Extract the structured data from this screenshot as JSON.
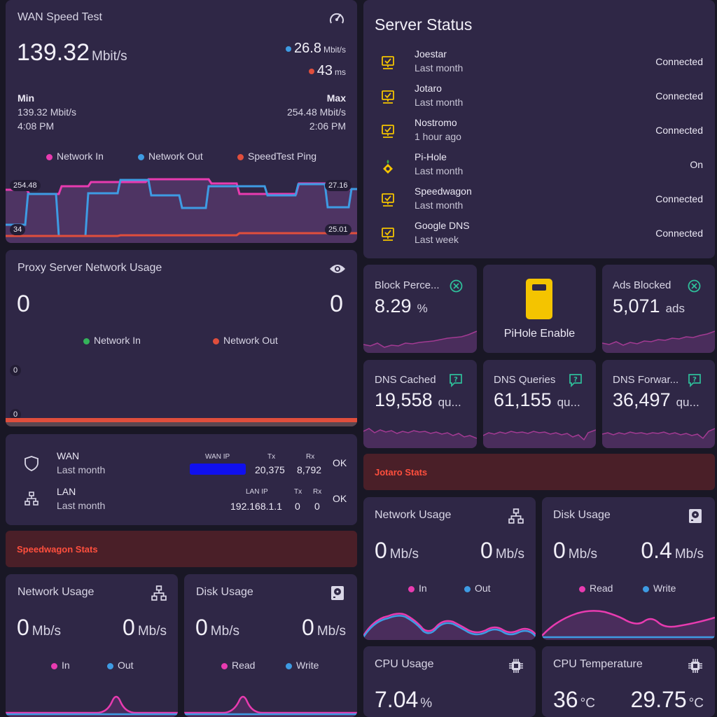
{
  "wan": {
    "title": "WAN Speed Test",
    "speed_value": "139.32",
    "speed_unit": "Mbit/s",
    "out_value": "26.8",
    "out_unit": "Mbit/s",
    "ping_value": "43",
    "ping_unit": "ms",
    "min_label": "Min",
    "min_value": "139.32 Mbit/s",
    "min_time": "4:08 PM",
    "max_label": "Max",
    "max_value": "254.48 Mbit/s",
    "max_time": "2:06 PM",
    "legend": [
      "Network In",
      "Network Out",
      "SpeedTest Ping"
    ],
    "axis_left_top": "254.48",
    "axis_left_bottom": "34",
    "axis_right_top": "27.16",
    "axis_right_bottom": "25.01",
    "colors": {
      "in": "#e83bb0",
      "out": "#3e9be3",
      "ping": "#e04e3c"
    }
  },
  "proxy": {
    "title": "Proxy Server Network Usage",
    "left_value": "0",
    "right_value": "0",
    "legend": [
      "Network In",
      "Network Out"
    ],
    "axis_top": "0",
    "axis_bottom": "0"
  },
  "network": {
    "wan_name": "WAN",
    "wan_sub": "Last month",
    "wan_ip_label": "WAN IP",
    "wan_tx_label": "Tx",
    "wan_rx_label": "Rx",
    "wan_tx": "20,375",
    "wan_rx": "8,792",
    "wan_state": "OK",
    "lan_name": "LAN",
    "lan_sub": "Last month",
    "lan_ip_label": "LAN IP",
    "lan_tx_label": "Tx",
    "lan_rx_label": "Rx",
    "lan_ip": "192.168.1.1",
    "lan_tx": "0",
    "lan_rx": "0",
    "lan_state": "OK"
  },
  "speedwagon_banner": "Speedwagon Stats",
  "jotaro_banner": "Jotaro Stats",
  "sw_network": {
    "title": "Network Usage",
    "in_value": "0",
    "out_value": "0",
    "unit": "Mb/s",
    "legend": [
      "In",
      "Out"
    ]
  },
  "sw_disk": {
    "title": "Disk Usage",
    "read_value": "0",
    "write_value": "0",
    "unit": "Mb/s",
    "legend": [
      "Read",
      "Write"
    ]
  },
  "server_status": {
    "title": "Server Status",
    "servers": [
      {
        "name": "Joestar",
        "sub": "Last month",
        "state": "Connected",
        "icon": "server-check-icon"
      },
      {
        "name": "Jotaro",
        "sub": "Last month",
        "state": "Connected",
        "icon": "server-check-icon"
      },
      {
        "name": "Nostromo",
        "sub": "1 hour ago",
        "state": "Connected",
        "icon": "server-check-icon"
      },
      {
        "name": "Pi-Hole",
        "sub": "Last month",
        "state": "On",
        "icon": "pihole-icon"
      },
      {
        "name": "Speedwagon",
        "sub": "Last month",
        "state": "Connected",
        "icon": "server-check-icon"
      },
      {
        "name": "Google DNS",
        "sub": "Last week",
        "state": "Connected",
        "icon": "server-check-icon"
      }
    ]
  },
  "pihole": {
    "block_title": "Block Perce...",
    "block_value": "8.29",
    "block_unit": "%",
    "enable_label": "PiHole Enable",
    "ads_title": "Ads Blocked",
    "ads_value": "5,071",
    "ads_unit": "ads",
    "cached_title": "DNS Cached",
    "cached_value": "19,558",
    "cached_unit": "qu...",
    "queries_title": "DNS Queries",
    "queries_value": "61,155",
    "queries_unit": "qu...",
    "forward_title": "DNS Forwar...",
    "forward_value": "36,497",
    "forward_unit": "qu..."
  },
  "jo_network": {
    "title": "Network Usage",
    "in_value": "0",
    "out_value": "0",
    "unit": "Mb/s",
    "legend": [
      "In",
      "Out"
    ]
  },
  "jo_disk": {
    "title": "Disk Usage",
    "read_value": "0",
    "write_value": "0.4",
    "unit": "Mb/s",
    "legend": [
      "Read",
      "Write"
    ]
  },
  "jo_cpu": {
    "title": "CPU Usage",
    "value": "7.04",
    "unit": "%"
  },
  "jo_temp": {
    "title": "CPU Temperature",
    "value1": "36",
    "value2": "29.75",
    "unit": "°C"
  }
}
